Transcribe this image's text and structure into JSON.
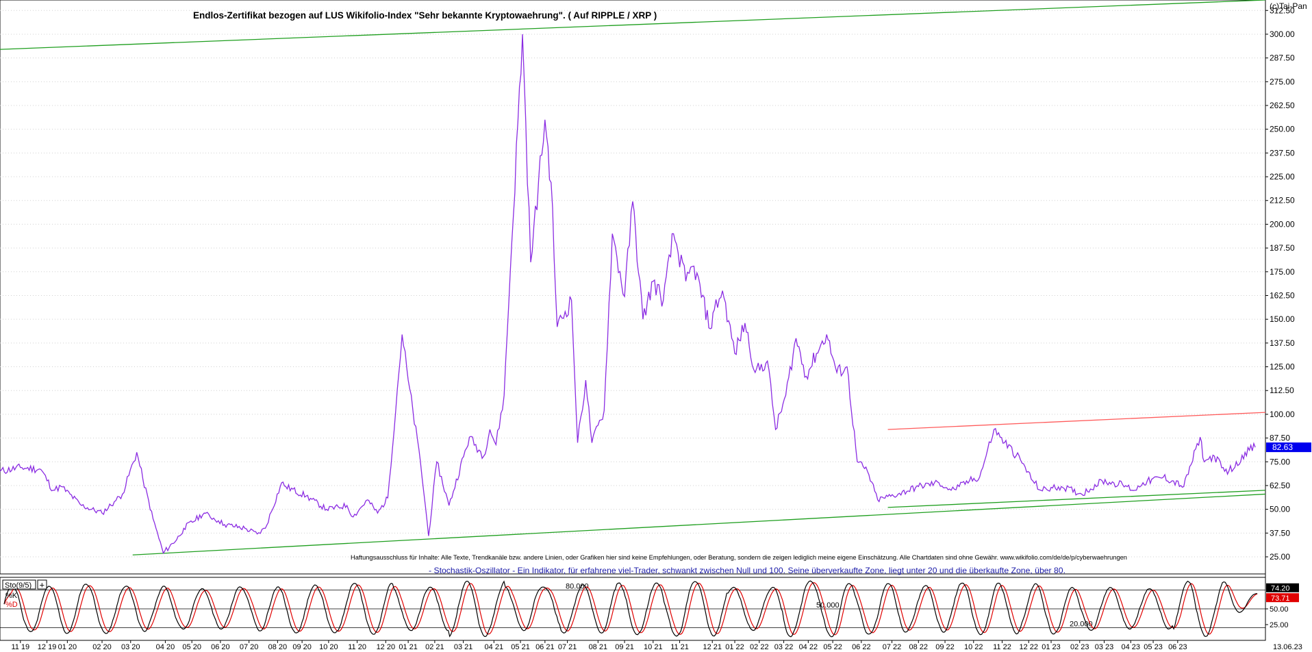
{
  "copyright": "(c)Tai-Pan",
  "disclaimer": "Haftungsausschluss für Inhalte: Alle Texte, Trendkanäle bzw. andere Linien, oder Grafiken hier sind keine Empfehlungen, oder Beratung, sondern die zeigen lediglich meine eigene Einschätzung. Alle Chartdaten sind ohne Gewähr. www.wikifolio.com/de/de/p/cyberwaehrungen",
  "oscillator_note": "- Stochastik-Oszillator - Ein Indikator, für erfahrene viel-Trader, schwankt zwischen Null und 100. Seine überverkaufte Zone, liegt unter 20 und die überkaufte Zone, über 80.",
  "colors": {
    "price": "#8a2be2",
    "trend_green": "#1e9e1e",
    "trend_red": "#ff5a5a",
    "k_line": "#000000",
    "d_line": "#e00000",
    "price_box": "#0000ee"
  },
  "chart_data": [
    {
      "type": "line",
      "title": "Endlos-Zertifikat bezogen auf LUS Wikifolio-Index \"Sehr bekannte Kryptowaehrung\". ( Auf RIPPLE / XRP )",
      "ylim": [
        16,
        318
      ],
      "yticks": [
        "25.00",
        "37.50",
        "50.00",
        "62.50",
        "75.00",
        "87.50",
        "100.00",
        "112.50",
        "125.00",
        "137.50",
        "150.00",
        "162.50",
        "175.00",
        "187.50",
        "200.00",
        "212.50",
        "225.00",
        "237.50",
        "250.00",
        "262.50",
        "275.00",
        "287.50",
        "300.00",
        "312.50"
      ],
      "ytick_values": [
        25,
        37.5,
        50,
        62.5,
        75,
        87.5,
        100,
        112.5,
        125,
        137.5,
        150,
        162.5,
        175,
        187.5,
        200,
        212.5,
        225,
        237.5,
        250,
        262.5,
        275,
        287.5,
        300,
        312.5
      ],
      "current_value": "82.63",
      "current_y": 82.63,
      "xlim": [
        0,
        62
      ],
      "x": [
        0,
        1,
        2,
        2.6,
        3,
        4,
        5,
        5.6,
        6,
        6.7,
        7,
        7.5,
        8,
        8.8,
        9,
        10,
        10.7,
        11,
        12,
        12.6,
        13,
        13.8,
        14,
        15,
        16,
        17,
        17.3,
        18,
        18.5,
        19,
        19.7,
        20,
        20.6,
        21,
        21.4,
        22,
        23,
        23.7,
        24,
        24.3,
        24.7,
        25,
        25.6,
        26,
        26.7,
        27,
        27.3,
        28,
        28.3,
        28.7,
        29,
        29.6,
        30,
        30.6,
        31,
        31.5,
        32,
        32.5,
        33,
        33.6,
        34,
        34.8,
        35,
        35.4,
        36,
        36.5,
        37,
        37.6,
        38,
        38.5,
        39,
        39.5,
        40,
        40.5,
        41,
        41.5,
        42,
        42.5,
        43,
        44,
        45,
        46,
        46.6,
        47,
        47.5,
        48,
        48.7,
        49,
        50,
        50.6,
        51,
        52,
        53,
        54,
        55,
        55.6,
        56,
        57,
        58,
        58.8,
        59,
        59.5,
        60,
        60.5,
        61,
        61.5
      ],
      "y": [
        70,
        72,
        71,
        60,
        62,
        52,
        48,
        54,
        58,
        80,
        66,
        45,
        27,
        36,
        40,
        48,
        44,
        42,
        40,
        37,
        40,
        64,
        62,
        57,
        50,
        52,
        46,
        55,
        48,
        56,
        142,
        118,
        75,
        36,
        75,
        52,
        88,
        78,
        92,
        84,
        110,
        175,
        300,
        180,
        255,
        222,
        146,
        160,
        85,
        118,
        85,
        102,
        195,
        162,
        212,
        150,
        170,
        160,
        195,
        170,
        178,
        145,
        155,
        165,
        132,
        148,
        122,
        128,
        92,
        110,
        140,
        120,
        132,
        142,
        122,
        125,
        75,
        70,
        55,
        58,
        62,
        64,
        60,
        62,
        65,
        67,
        92,
        88,
        76,
        65,
        60,
        62,
        58,
        65,
        63,
        60,
        64,
        67,
        62,
        88,
        75,
        78,
        70,
        72,
        80,
        82.63
      ],
      "trend_lines": [
        {
          "color": "#1e9e1e",
          "x": [
            0,
            62
          ],
          "y": [
            292,
            318
          ]
        },
        {
          "color": "#1e9e1e",
          "x": [
            6.5,
            62
          ],
          "y": [
            26,
            58
          ]
        },
        {
          "color": "#1e9e1e",
          "x": [
            43.5,
            62
          ],
          "y": [
            51,
            60
          ]
        },
        {
          "color": "#ff5a5a",
          "x": [
            43.5,
            62
          ],
          "y": [
            92,
            101
          ]
        }
      ]
    },
    {
      "type": "line",
      "title": "Sto(9/5)",
      "ylim": [
        0,
        100
      ],
      "level_labels": [
        "80.000",
        "50.000",
        "20.000"
      ],
      "level_values": [
        80,
        50,
        20
      ],
      "yticks": [
        "25.00",
        "50.00"
      ],
      "ytick_values": [
        25,
        50
      ],
      "series": [
        {
          "name": "%K",
          "color": "#000000",
          "value_label": "74.20",
          "last": 74.2
        },
        {
          "name": "%D",
          "color": "#e00000",
          "value_label": "73.71",
          "last": 73.71
        }
      ]
    }
  ],
  "x_axis": {
    "labels": [
      "11 19",
      "12 19",
      "01 20",
      "02 20",
      "03 20",
      "04 20",
      "05 20",
      "06 20",
      "07 20",
      "08 20",
      "09 20",
      "10 20",
      "11 20",
      "12 20",
      "01 21",
      "02 21",
      "03 21",
      "04 21",
      "05 21",
      "06 21",
      "07 21",
      "08 21",
      "09 21",
      "10 21",
      "11 21",
      "12 21",
      "01 22",
      "02 22",
      "03 22",
      "04 22",
      "05 22",
      "06 22",
      "07 22",
      "08 22",
      "09 22",
      "10 22",
      "11 22",
      "12 22",
      "01 23",
      "02 23",
      "03 23",
      "04 23",
      "05 23",
      "06 23"
    ],
    "positions": [
      1,
      2.3,
      3.3,
      5,
      6.4,
      8.1,
      9.4,
      10.8,
      12.2,
      13.6,
      14.8,
      16.1,
      17.5,
      18.9,
      20,
      21.3,
      22.7,
      24.2,
      25.5,
      26.7,
      27.8,
      29.3,
      30.6,
      32,
      33.3,
      34.9,
      36,
      37.2,
      38.4,
      39.6,
      40.8,
      42.2,
      43.7,
      45,
      46.3,
      47.7,
      49.1,
      50.4,
      51.5,
      52.9,
      54.1,
      55.4,
      56.5,
      57.7
    ],
    "date_label": "13.06.23"
  }
}
